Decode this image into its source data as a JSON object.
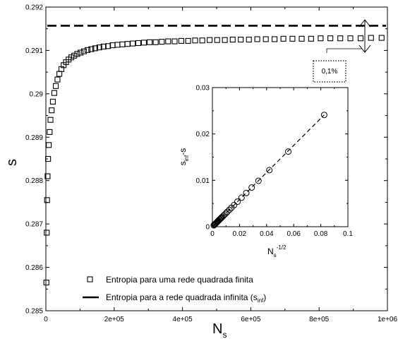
{
  "chart_data": {
    "type": "scatter",
    "main": {
      "xlabel": "N",
      "xlabel_sub": "s",
      "ylabel": "s",
      "xlim": [
        0,
        1000000
      ],
      "ylim": [
        0.285,
        0.292
      ],
      "x_ticks": [
        0,
        200000,
        400000,
        600000,
        800000,
        1000000
      ],
      "x_tick_labels": [
        "0",
        "2e+05",
        "4e+05",
        "6e+05",
        "8e+05",
        "1e+06"
      ],
      "y_ticks": [
        0.285,
        0.286,
        0.287,
        0.288,
        0.289,
        0.29,
        0.291,
        0.292
      ],
      "y_tick_labels": [
        "0.285",
        "0.286",
        "0.287",
        "0.288",
        "0.289",
        "0.29",
        "0.291",
        "0.292"
      ],
      "s_inf": 0.29157,
      "finite_lattice_series": {
        "x": [
          1500,
          2500,
          3500,
          5000,
          6500,
          8500,
          11000,
          13500,
          17000,
          20500,
          24500,
          29000,
          34000,
          39500,
          45500,
          52000,
          59000,
          66500,
          74500,
          83000,
          92000,
          101500,
          111500,
          122000,
          133000,
          144500,
          156500,
          169000,
          182000,
          195500,
          209500,
          224000,
          239000,
          254500,
          270500,
          287000,
          304000,
          321500,
          339500,
          358000,
          377000,
          396500,
          416500,
          437000,
          458000,
          479500,
          501500,
          524000,
          547000,
          570500,
          594500,
          619000,
          644000,
          669500,
          695500,
          722000,
          749000,
          776500,
          804500,
          833000,
          862000,
          891500,
          921500,
          952000,
          983000
        ],
        "y": [
          0.28565,
          0.2868,
          0.28755,
          0.2881,
          0.2885,
          0.28882,
          0.28912,
          0.2894,
          0.28962,
          0.28982,
          0.29002,
          0.29018,
          0.29033,
          0.29046,
          0.29057,
          0.29066,
          0.29073,
          0.29079,
          0.29084,
          0.29088,
          0.29092,
          0.29095,
          0.29098,
          0.29101,
          0.29103,
          0.29105,
          0.29107,
          0.29109,
          0.2911,
          0.29112,
          0.29113,
          0.29114,
          0.29115,
          0.29116,
          0.29117,
          0.29118,
          0.29119,
          0.29119,
          0.2912,
          0.29121,
          0.29121,
          0.29122,
          0.29122,
          0.29123,
          0.29123,
          0.29124,
          0.29124,
          0.29124,
          0.29125,
          0.29125,
          0.29125,
          0.29126,
          0.29126,
          0.29126,
          0.29127,
          0.29127,
          0.29127,
          0.29127,
          0.29128,
          0.29128,
          0.29128,
          0.29128,
          0.29128,
          0.29129,
          0.29129
        ]
      },
      "legend": {
        "placement": "bottom-left",
        "entries": [
          {
            "label": "Entropia para uma rede quadrada finita",
            "marker": "square"
          },
          {
            "label": "Entropia para a rede quadrada infinita (s",
            "label_sub": "inf",
            "label_end": ")",
            "marker": "dashed-line"
          }
        ]
      },
      "annotation": {
        "text": "0,1%",
        "style": "dotted-box"
      }
    },
    "inset": {
      "type": "scatter",
      "xlabel": "N",
      "xlabel_sub": "s",
      "xlabel_sup": "-1/2",
      "ylabel": "s",
      "ylabel_sub": "inf",
      "ylabel_end": "-s",
      "xlim": [
        0,
        0.1
      ],
      "ylim": [
        0,
        0.03
      ],
      "x_ticks": [
        0,
        0.02,
        0.04,
        0.06,
        0.08,
        0.1
      ],
      "x_tick_labels": [
        "0",
        "0.02",
        "0.04",
        "0.06",
        "0.08",
        "0.1"
      ],
      "y_ticks": [
        0,
        0.01,
        0.02,
        0.03
      ],
      "y_tick_labels": [
        "0",
        "0.01",
        "0.02",
        "0.03"
      ],
      "points": {
        "x": [
          0.001,
          0.0015,
          0.002,
          0.0025,
          0.003,
          0.0035,
          0.004,
          0.0045,
          0.005,
          0.0055,
          0.006,
          0.0065,
          0.007,
          0.008,
          0.009,
          0.01,
          0.011,
          0.0125,
          0.014,
          0.016,
          0.0185,
          0.0215,
          0.025,
          0.029,
          0.034,
          0.042,
          0.056,
          0.0825
        ],
        "y": [
          0.0003,
          0.00044,
          0.00058,
          0.00073,
          0.00087,
          0.00102,
          0.00116,
          0.00131,
          0.00146,
          0.0016,
          0.00175,
          0.0019,
          0.00204,
          0.00233,
          0.00262,
          0.00291,
          0.0032,
          0.00364,
          0.00408,
          0.00466,
          0.00539,
          0.00626,
          0.00728,
          0.00845,
          0.0099,
          0.0122,
          0.0162,
          0.0241
        ]
      },
      "fit_line": {
        "x": [
          0,
          0.0825
        ],
        "y": [
          0,
          0.0241
        ]
      }
    },
    "colors": {
      "ink": "#000000",
      "background": "#ffffff"
    }
  }
}
